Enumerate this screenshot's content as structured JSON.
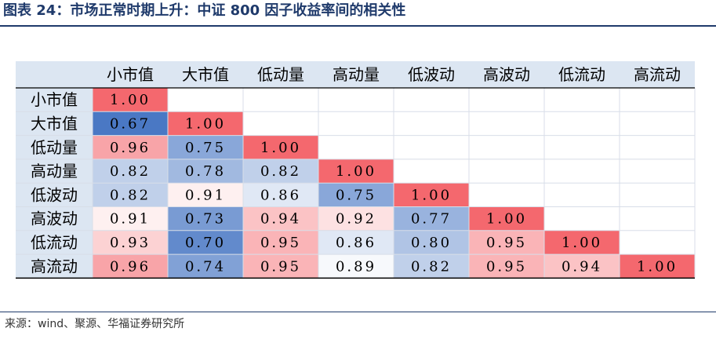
{
  "title": "图表 24：市场正常时期上升：中证 800 因子收益率间的相关性",
  "source": "来源：wind、聚源、华福证券研究所",
  "chart_data": {
    "type": "heatmap",
    "columns": [
      "小市值",
      "大市值",
      "低动量",
      "高动量",
      "低波动",
      "高波动",
      "低流动",
      "高流动"
    ],
    "rows": [
      "小市值",
      "大市值",
      "低动量",
      "高动量",
      "低波动",
      "高波动",
      "低流动",
      "高流动"
    ],
    "values": [
      [
        "1.00"
      ],
      [
        "0.67",
        "1.00"
      ],
      [
        "0.96",
        "0.75",
        "1.00"
      ],
      [
        "0.82",
        "0.78",
        "0.82",
        "1.00"
      ],
      [
        "0.82",
        "0.91",
        "0.86",
        "0.75",
        "1.00"
      ],
      [
        "0.91",
        "0.73",
        "0.94",
        "0.92",
        "0.77",
        "1.00"
      ],
      [
        "0.93",
        "0.70",
        "0.95",
        "0.86",
        "0.80",
        "0.95",
        "1.00"
      ],
      [
        "0.96",
        "0.74",
        "0.95",
        "0.89",
        "0.82",
        "0.95",
        "0.94",
        "1.00"
      ]
    ],
    "color_scale": {
      "low": "#4a78c4",
      "mid": "#ffffff",
      "high": "#f4686e"
    },
    "header_bg": "#dce6f2",
    "grid": true
  }
}
